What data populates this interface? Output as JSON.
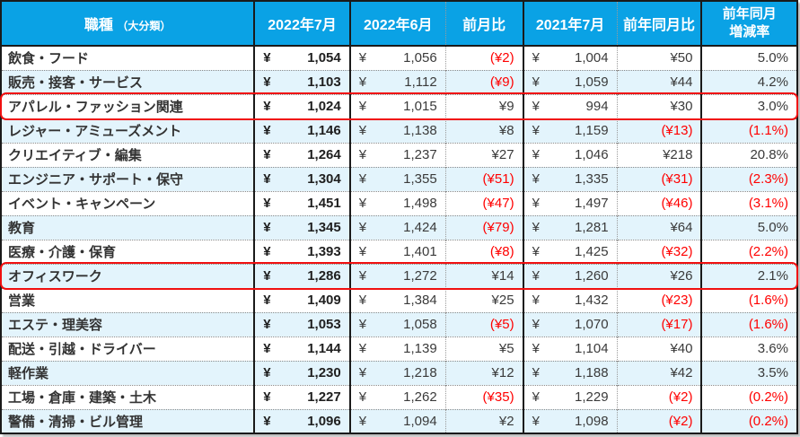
{
  "chart_data": {
    "type": "table",
    "currency_symbol": "¥",
    "negative_convention": "parentheses-red",
    "columns": [
      {
        "label": "職種",
        "sub": "（大分類）"
      },
      {
        "label": "2022年7月"
      },
      {
        "label": "2022年6月"
      },
      {
        "label": "前月比"
      },
      {
        "label": "2021年7月"
      },
      {
        "label": "前年同月比"
      },
      {
        "label": "前年同月",
        "label2": "増減率"
      }
    ],
    "rows": [
      {
        "name": "飲食・フード",
        "jul2022": "1,054",
        "jun2022": "1,056",
        "mom": "(¥2)",
        "jul2021": "1,004",
        "yoy": "¥50",
        "rate": "5.0%",
        "highlighted": false
      },
      {
        "name": "販売・接客・サービス",
        "jul2022": "1,103",
        "jun2022": "1,112",
        "mom": "(¥9)",
        "jul2021": "1,059",
        "yoy": "¥44",
        "rate": "4.2%",
        "highlighted": false
      },
      {
        "name": "アパレル・ファッション関連",
        "jul2022": "1,024",
        "jun2022": "1,015",
        "mom": "¥9",
        "jul2021": "994",
        "yoy": "¥30",
        "rate": "3.0%",
        "highlighted": true
      },
      {
        "name": "レジャー・アミューズメント",
        "jul2022": "1,146",
        "jun2022": "1,138",
        "mom": "¥8",
        "jul2021": "1,159",
        "yoy": "(¥13)",
        "rate": "(1.1%)",
        "highlighted": false
      },
      {
        "name": "クリエイティブ・編集",
        "jul2022": "1,264",
        "jun2022": "1,237",
        "mom": "¥27",
        "jul2021": "1,046",
        "yoy": "¥218",
        "rate": "20.8%",
        "highlighted": false
      },
      {
        "name": "エンジニア・サポート・保守",
        "jul2022": "1,304",
        "jun2022": "1,355",
        "mom": "(¥51)",
        "jul2021": "1,335",
        "yoy": "(¥31)",
        "rate": "(2.3%)",
        "highlighted": false
      },
      {
        "name": "イベント・キャンペーン",
        "jul2022": "1,451",
        "jun2022": "1,498",
        "mom": "(¥47)",
        "jul2021": "1,497",
        "yoy": "(¥46)",
        "rate": "(3.1%)",
        "highlighted": false
      },
      {
        "name": "教育",
        "jul2022": "1,345",
        "jun2022": "1,424",
        "mom": "(¥79)",
        "jul2021": "1,281",
        "yoy": "¥64",
        "rate": "5.0%",
        "highlighted": false
      },
      {
        "name": "医療・介護・保育",
        "jul2022": "1,393",
        "jun2022": "1,401",
        "mom": "(¥8)",
        "jul2021": "1,425",
        "yoy": "(¥32)",
        "rate": "(2.2%)",
        "highlighted": false
      },
      {
        "name": "オフィスワーク",
        "jul2022": "1,286",
        "jun2022": "1,272",
        "mom": "¥14",
        "jul2021": "1,260",
        "yoy": "¥26",
        "rate": "2.1%",
        "highlighted": true
      },
      {
        "name": "営業",
        "jul2022": "1,409",
        "jun2022": "1,384",
        "mom": "¥25",
        "jul2021": "1,432",
        "yoy": "(¥23)",
        "rate": "(1.6%)",
        "highlighted": false
      },
      {
        "name": "エステ・理美容",
        "jul2022": "1,053",
        "jun2022": "1,058",
        "mom": "(¥5)",
        "jul2021": "1,070",
        "yoy": "(¥17)",
        "rate": "(1.6%)",
        "highlighted": false
      },
      {
        "name": "配送・引越・ドライバー",
        "jul2022": "1,144",
        "jun2022": "1,139",
        "mom": "¥5",
        "jul2021": "1,104",
        "yoy": "¥40",
        "rate": "3.6%",
        "highlighted": false
      },
      {
        "name": "軽作業",
        "jul2022": "1,230",
        "jun2022": "1,218",
        "mom": "¥12",
        "jul2021": "1,188",
        "yoy": "¥42",
        "rate": "3.5%",
        "highlighted": false
      },
      {
        "name": "工場・倉庫・建築・土木",
        "jul2022": "1,227",
        "jun2022": "1,262",
        "mom": "(¥35)",
        "jul2021": "1,229",
        "yoy": "(¥2)",
        "rate": "(0.2%)",
        "highlighted": false
      },
      {
        "name": "警備・清掃・ビル管理",
        "jul2022": "1,096",
        "jun2022": "1,094",
        "mom": "¥2",
        "jul2021": "1,098",
        "yoy": "(¥2)",
        "rate": "(0.2%)",
        "highlighted": false
      }
    ],
    "colors": {
      "header_bg": "#0aa2e5",
      "row_alt_bg": "#e3f4fc",
      "negative_text": "#ff0000",
      "highlight_outline": "#f01010"
    }
  }
}
